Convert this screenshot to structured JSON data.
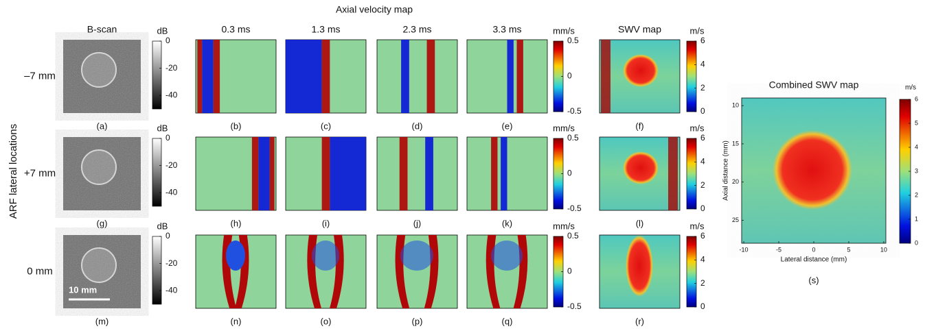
{
  "title": "Axial velocity map",
  "column_headers": [
    "B-scan",
    "0.3 ms",
    "1.3 ms",
    "2.3 ms",
    "3.3 ms",
    "SWV map"
  ],
  "row_axis_label": "ARF lateral locations",
  "row_labels": [
    "–7 mm",
    "+7 mm",
    "0 mm"
  ],
  "panel_labels": [
    [
      "(a)",
      "(b)",
      "(c)",
      "(d)",
      "(e)",
      "(f)"
    ],
    [
      "(g)",
      "(h)",
      "(i)",
      "(j)",
      "(k)",
      "(l)"
    ],
    [
      "(m)",
      "(n)",
      "(o)",
      "(p)",
      "(q)",
      "(r)"
    ]
  ],
  "scale_bar": "10 mm",
  "colorbars": {
    "bscan": {
      "unit": "dB",
      "range": [
        -50,
        0
      ],
      "ticks": [
        0,
        -20,
        -40
      ]
    },
    "velocity": {
      "unit": "mm/s",
      "range": [
        -0.5,
        0.5
      ],
      "ticks": [
        0.5,
        0,
        -0.5
      ]
    },
    "swv": {
      "unit": "m/s",
      "range": [
        0,
        6
      ],
      "ticks": [
        6,
        4,
        2,
        0
      ]
    }
  },
  "combined": {
    "title": "Combined SWV map",
    "unit": "m/s",
    "range": [
      0,
      6
    ],
    "colorbar_ticks": [
      0,
      1,
      2,
      3,
      4,
      5,
      6
    ],
    "x_label": "Lateral distance (mm)",
    "y_label": "Axial distance (mm)",
    "xlim": [
      -10.3,
      10.3
    ],
    "xticks": [
      -10,
      -5,
      0,
      5,
      10
    ],
    "ylim": [
      9,
      28
    ],
    "yticks": [
      10,
      15,
      20,
      25
    ],
    "panel_label": "(s)"
  }
}
